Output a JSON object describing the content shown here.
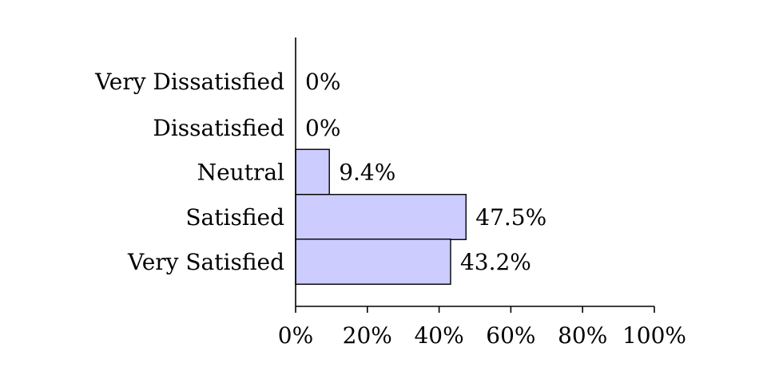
{
  "chart_data": {
    "type": "bar",
    "orientation": "horizontal",
    "categories": [
      "Very Dissatisfied",
      "Dissatisfied",
      "Neutral",
      "Satisfied",
      "Very Satisfied"
    ],
    "values": [
      0,
      0,
      9.4,
      47.5,
      43.2
    ],
    "value_labels": [
      "0%",
      "0%",
      "9.4%",
      "47.5%",
      "43.2%"
    ],
    "xlim": [
      0,
      100
    ],
    "xticks": [
      0,
      20,
      40,
      60,
      80,
      100
    ],
    "xtick_labels": [
      "0%",
      "20%",
      "40%",
      "60%",
      "80%",
      "100%"
    ],
    "title": "",
    "xlabel": "",
    "ylabel": "",
    "grid": false,
    "legend": "none",
    "colors": {
      "bar_fill": "#ccccff",
      "bar_stroke": "#000000",
      "axis": "#000000",
      "text": "#000000"
    }
  }
}
